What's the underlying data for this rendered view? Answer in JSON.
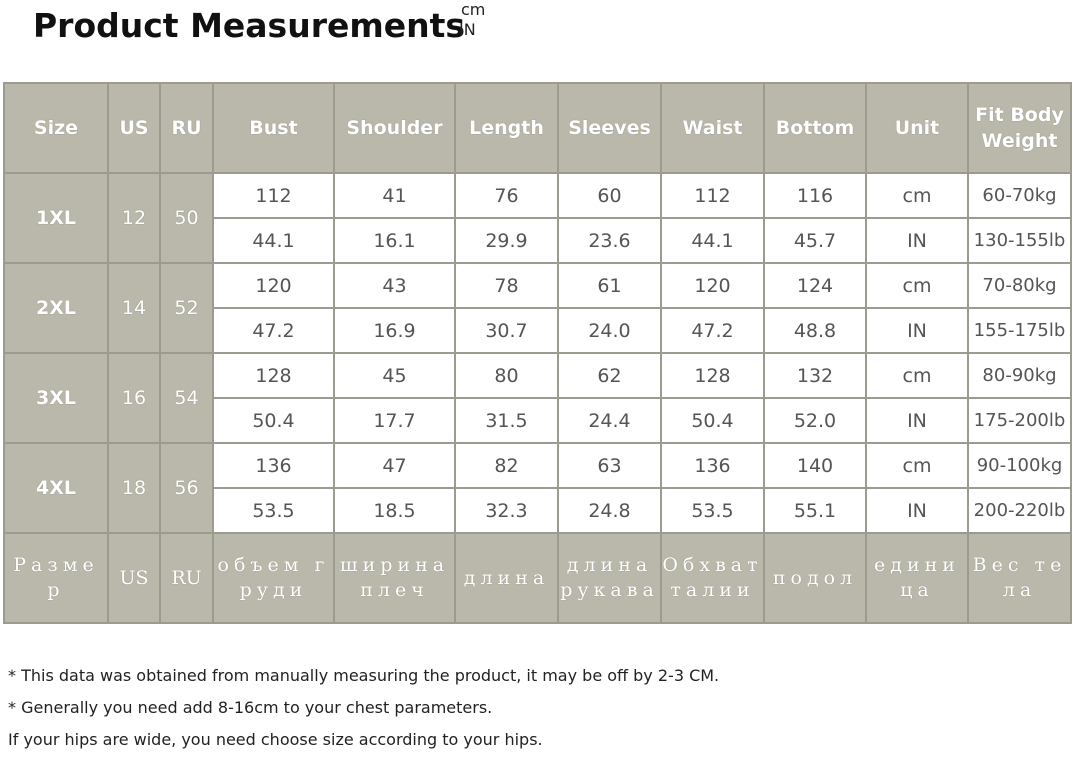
{
  "title": "Product Measurements",
  "unit_toggle": {
    "top": "cm",
    "bottom": "IN"
  },
  "table": {
    "headers": [
      "Size",
      "US",
      "RU",
      "Bust",
      "Shoulder",
      "Length",
      "Sleeves",
      "Waist",
      "Bottom",
      "Unit",
      "Fit Body Weight"
    ],
    "rows": [
      {
        "size": "1XL",
        "us": "12",
        "ru": "50",
        "cm": [
          "112",
          "41",
          "76",
          "60",
          "112",
          "116",
          "cm",
          "60-70kg"
        ],
        "in": [
          "44.1",
          "16.1",
          "29.9",
          "23.6",
          "44.1",
          "45.7",
          "IN",
          "130-155lb"
        ]
      },
      {
        "size": "2XL",
        "us": "14",
        "ru": "52",
        "cm": [
          "120",
          "43",
          "78",
          "61",
          "120",
          "124",
          "cm",
          "70-80kg"
        ],
        "in": [
          "47.2",
          "16.9",
          "30.7",
          "24.0",
          "47.2",
          "48.8",
          "IN",
          "155-175lb"
        ]
      },
      {
        "size": "3XL",
        "us": "16",
        "ru": "54",
        "cm": [
          "128",
          "45",
          "80",
          "62",
          "128",
          "132",
          "cm",
          "80-90kg"
        ],
        "in": [
          "50.4",
          "17.7",
          "31.5",
          "24.4",
          "50.4",
          "52.0",
          "IN",
          "175-200lb"
        ]
      },
      {
        "size": "4XL",
        "us": "18",
        "ru": "56",
        "cm": [
          "136",
          "47",
          "82",
          "63",
          "136",
          "140",
          "cm",
          "90-100kg"
        ],
        "in": [
          "53.5",
          "18.5",
          "32.3",
          "24.8",
          "53.5",
          "55.1",
          "IN",
          "200-220lb"
        ]
      }
    ],
    "russian_headers": [
      "Размер",
      "US",
      "RU",
      "объем груди",
      "ширина плеч",
      "длина",
      "длина рукава",
      "Обхват талии",
      "подол",
      "единица",
      "Вес тела"
    ]
  },
  "notes": [
    "* This data was obtained from manually measuring the product, it may be off by 2-3 CM.",
    "*  Generally you need add 8-16cm to your chest parameters.",
    "If your hips are wide, you need choose size according to your hips."
  ],
  "colors": {
    "header_bg": "#b9b8ab",
    "border": "#9b9b90",
    "cell_text": "#555555"
  }
}
